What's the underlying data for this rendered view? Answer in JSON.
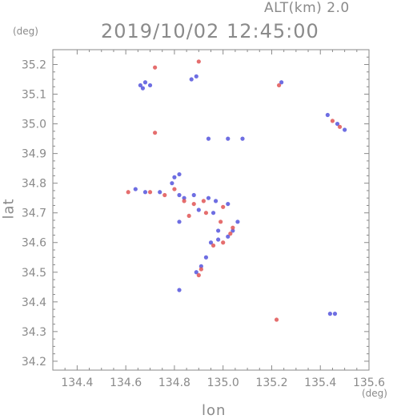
{
  "header": {
    "altitude_label": "ALT(km)  2.0",
    "datetime": "2019/10/02 12:45:00"
  },
  "axes": {
    "x_unit": "(deg)",
    "y_unit": "(deg)",
    "x_label": "lon",
    "y_label": "lat"
  },
  "colors": {
    "frame": "#8a8a8a",
    "text": "#8a8a8a",
    "positive": "#e05555",
    "negative": "#5555dd"
  },
  "chart_data": {
    "type": "scatter",
    "title": "2019/10/02 12:45:00",
    "subtitle": "ALT(km)  2.0",
    "xlabel": "lon",
    "ylabel": "lat",
    "xlim": [
      134.3,
      135.6
    ],
    "ylim": [
      34.17,
      35.25
    ],
    "xticks": [
      134.4,
      134.6,
      134.8,
      135.0,
      135.2,
      135.4,
      135.6
    ],
    "xtick_labels": [
      "134.4",
      "134.6",
      "134.8",
      "135.0",
      "135.2",
      "135.4",
      "135.6"
    ],
    "yticks": [
      34.2,
      34.3,
      34.4,
      34.5,
      34.6,
      34.7,
      34.8,
      34.9,
      35.0,
      35.1,
      35.2
    ],
    "ytick_labels": [
      "34.2",
      "34.3",
      "34.4",
      "34.5",
      "34.6",
      "34.7",
      "34.8",
      "34.9",
      "35.0",
      "35.1",
      "35.2"
    ],
    "grid": false,
    "series": [
      {
        "color": "#5555dd",
        "points": [
          [
            134.66,
            35.13
          ],
          [
            134.68,
            35.14
          ],
          [
            134.7,
            35.13
          ],
          [
            134.67,
            35.12
          ],
          [
            134.87,
            35.15
          ],
          [
            134.89,
            35.16
          ],
          [
            134.94,
            34.95
          ],
          [
            135.02,
            34.95
          ],
          [
            135.08,
            34.95
          ],
          [
            134.8,
            34.82
          ],
          [
            134.82,
            34.83
          ],
          [
            134.79,
            34.8
          ],
          [
            134.64,
            34.78
          ],
          [
            134.68,
            34.77
          ],
          [
            134.74,
            34.77
          ],
          [
            134.82,
            34.76
          ],
          [
            134.84,
            34.75
          ],
          [
            134.88,
            34.76
          ],
          [
            134.94,
            34.75
          ],
          [
            134.97,
            34.74
          ],
          [
            135.02,
            34.73
          ],
          [
            134.9,
            34.71
          ],
          [
            134.96,
            34.7
          ],
          [
            135.06,
            34.67
          ],
          [
            134.82,
            34.67
          ],
          [
            134.98,
            34.64
          ],
          [
            135.02,
            34.62
          ],
          [
            135.04,
            34.64
          ],
          [
            134.95,
            34.6
          ],
          [
            134.98,
            34.61
          ],
          [
            134.91,
            34.52
          ],
          [
            134.89,
            34.5
          ],
          [
            134.93,
            34.55
          ],
          [
            134.82,
            34.44
          ],
          [
            135.44,
            34.36
          ],
          [
            135.46,
            34.36
          ],
          [
            135.43,
            35.03
          ],
          [
            135.47,
            35.0
          ],
          [
            135.5,
            34.98
          ],
          [
            135.24,
            35.14
          ]
        ]
      },
      {
        "color": "#e05555",
        "points": [
          [
            134.72,
            35.19
          ],
          [
            134.9,
            35.21
          ],
          [
            134.72,
            34.97
          ],
          [
            134.61,
            34.77
          ],
          [
            134.7,
            34.77
          ],
          [
            134.76,
            34.76
          ],
          [
            134.84,
            34.74
          ],
          [
            134.88,
            34.73
          ],
          [
            134.92,
            34.74
          ],
          [
            135.0,
            34.72
          ],
          [
            134.86,
            34.69
          ],
          [
            134.93,
            34.7
          ],
          [
            134.99,
            34.67
          ],
          [
            135.04,
            34.65
          ],
          [
            135.03,
            34.63
          ],
          [
            135.0,
            34.6
          ],
          [
            134.96,
            34.59
          ],
          [
            134.91,
            34.51
          ],
          [
            134.9,
            34.49
          ],
          [
            135.22,
            34.34
          ],
          [
            135.45,
            35.01
          ],
          [
            135.48,
            34.99
          ],
          [
            135.23,
            35.13
          ],
          [
            134.8,
            34.78
          ]
        ]
      }
    ]
  }
}
